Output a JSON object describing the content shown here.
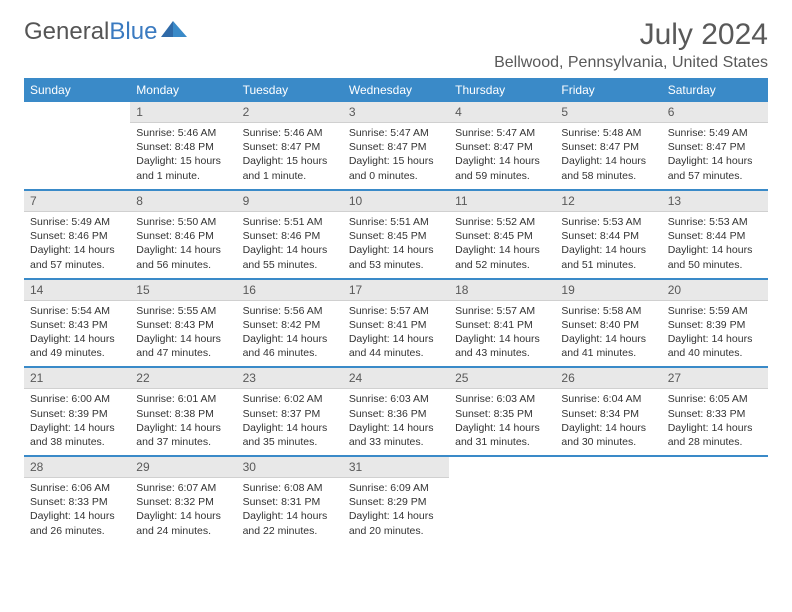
{
  "logo": {
    "general": "General",
    "blue": "Blue"
  },
  "title": "July 2024",
  "location": "Bellwood, Pennsylvania, United States",
  "weekdays": [
    "Sunday",
    "Monday",
    "Tuesday",
    "Wednesday",
    "Thursday",
    "Friday",
    "Saturday"
  ],
  "colors": {
    "header_bg": "#3a8ac8",
    "header_fg": "#ffffff",
    "daynum_bg": "#e8e8e8",
    "text": "#333333",
    "accent": "#3a7ac0"
  },
  "start_offset": 1,
  "days": [
    {
      "n": 1,
      "sunrise": "5:46 AM",
      "sunset": "8:48 PM",
      "daylight": "15 hours and 1 minute."
    },
    {
      "n": 2,
      "sunrise": "5:46 AM",
      "sunset": "8:47 PM",
      "daylight": "15 hours and 1 minute."
    },
    {
      "n": 3,
      "sunrise": "5:47 AM",
      "sunset": "8:47 PM",
      "daylight": "15 hours and 0 minutes."
    },
    {
      "n": 4,
      "sunrise": "5:47 AM",
      "sunset": "8:47 PM",
      "daylight": "14 hours and 59 minutes."
    },
    {
      "n": 5,
      "sunrise": "5:48 AM",
      "sunset": "8:47 PM",
      "daylight": "14 hours and 58 minutes."
    },
    {
      "n": 6,
      "sunrise": "5:49 AM",
      "sunset": "8:47 PM",
      "daylight": "14 hours and 57 minutes."
    },
    {
      "n": 7,
      "sunrise": "5:49 AM",
      "sunset": "8:46 PM",
      "daylight": "14 hours and 57 minutes."
    },
    {
      "n": 8,
      "sunrise": "5:50 AM",
      "sunset": "8:46 PM",
      "daylight": "14 hours and 56 minutes."
    },
    {
      "n": 9,
      "sunrise": "5:51 AM",
      "sunset": "8:46 PM",
      "daylight": "14 hours and 55 minutes."
    },
    {
      "n": 10,
      "sunrise": "5:51 AM",
      "sunset": "8:45 PM",
      "daylight": "14 hours and 53 minutes."
    },
    {
      "n": 11,
      "sunrise": "5:52 AM",
      "sunset": "8:45 PM",
      "daylight": "14 hours and 52 minutes."
    },
    {
      "n": 12,
      "sunrise": "5:53 AM",
      "sunset": "8:44 PM",
      "daylight": "14 hours and 51 minutes."
    },
    {
      "n": 13,
      "sunrise": "5:53 AM",
      "sunset": "8:44 PM",
      "daylight": "14 hours and 50 minutes."
    },
    {
      "n": 14,
      "sunrise": "5:54 AM",
      "sunset": "8:43 PM",
      "daylight": "14 hours and 49 minutes."
    },
    {
      "n": 15,
      "sunrise": "5:55 AM",
      "sunset": "8:43 PM",
      "daylight": "14 hours and 47 minutes."
    },
    {
      "n": 16,
      "sunrise": "5:56 AM",
      "sunset": "8:42 PM",
      "daylight": "14 hours and 46 minutes."
    },
    {
      "n": 17,
      "sunrise": "5:57 AM",
      "sunset": "8:41 PM",
      "daylight": "14 hours and 44 minutes."
    },
    {
      "n": 18,
      "sunrise": "5:57 AM",
      "sunset": "8:41 PM",
      "daylight": "14 hours and 43 minutes."
    },
    {
      "n": 19,
      "sunrise": "5:58 AM",
      "sunset": "8:40 PM",
      "daylight": "14 hours and 41 minutes."
    },
    {
      "n": 20,
      "sunrise": "5:59 AM",
      "sunset": "8:39 PM",
      "daylight": "14 hours and 40 minutes."
    },
    {
      "n": 21,
      "sunrise": "6:00 AM",
      "sunset": "8:39 PM",
      "daylight": "14 hours and 38 minutes."
    },
    {
      "n": 22,
      "sunrise": "6:01 AM",
      "sunset": "8:38 PM",
      "daylight": "14 hours and 37 minutes."
    },
    {
      "n": 23,
      "sunrise": "6:02 AM",
      "sunset": "8:37 PM",
      "daylight": "14 hours and 35 minutes."
    },
    {
      "n": 24,
      "sunrise": "6:03 AM",
      "sunset": "8:36 PM",
      "daylight": "14 hours and 33 minutes."
    },
    {
      "n": 25,
      "sunrise": "6:03 AM",
      "sunset": "8:35 PM",
      "daylight": "14 hours and 31 minutes."
    },
    {
      "n": 26,
      "sunrise": "6:04 AM",
      "sunset": "8:34 PM",
      "daylight": "14 hours and 30 minutes."
    },
    {
      "n": 27,
      "sunrise": "6:05 AM",
      "sunset": "8:33 PM",
      "daylight": "14 hours and 28 minutes."
    },
    {
      "n": 28,
      "sunrise": "6:06 AM",
      "sunset": "8:33 PM",
      "daylight": "14 hours and 26 minutes."
    },
    {
      "n": 29,
      "sunrise": "6:07 AM",
      "sunset": "8:32 PM",
      "daylight": "14 hours and 24 minutes."
    },
    {
      "n": 30,
      "sunrise": "6:08 AM",
      "sunset": "8:31 PM",
      "daylight": "14 hours and 22 minutes."
    },
    {
      "n": 31,
      "sunrise": "6:09 AM",
      "sunset": "8:29 PM",
      "daylight": "14 hours and 20 minutes."
    }
  ],
  "labels": {
    "sunrise": "Sunrise:",
    "sunset": "Sunset:",
    "daylight": "Daylight:"
  }
}
